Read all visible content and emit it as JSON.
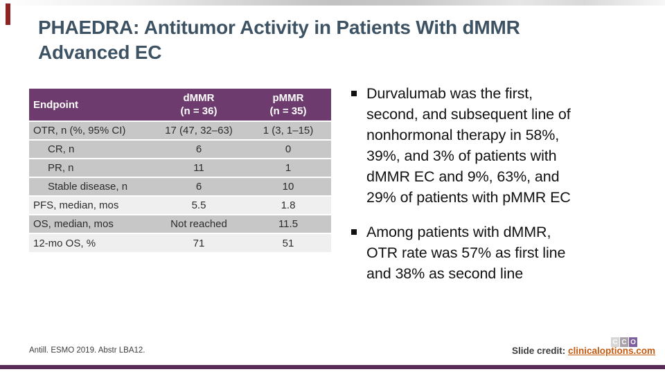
{
  "title": {
    "line1": "PHAEDRA: Antitumor Activity in Patients With dMMR",
    "line2": "Advanced EC"
  },
  "table": {
    "header": {
      "endpoint": "Endpoint",
      "dmmr_name": "dMMR",
      "dmmr_n": "(n = 36)",
      "pmmr_name": "pMMR",
      "pmmr_n": "(n = 35)"
    },
    "rows": [
      {
        "label": "OTR, n (%, 95% CI)",
        "dmmr": "17 (47, 32–63)",
        "pmmr": "1 (3, 1–15)"
      },
      {
        "label": "CR, n",
        "dmmr": "6",
        "pmmr": "0"
      },
      {
        "label": "PR, n",
        "dmmr": "11",
        "pmmr": "1"
      },
      {
        "label": "Stable disease, n",
        "dmmr": "6",
        "pmmr": "10"
      },
      {
        "label": "PFS, median, mos",
        "dmmr": "5.5",
        "pmmr": "1.8"
      },
      {
        "label": "OS, median, mos",
        "dmmr": "Not reached",
        "pmmr": "11.5"
      },
      {
        "label": "12-mo OS, %",
        "dmmr": "71",
        "pmmr": "51"
      }
    ]
  },
  "bullets": [
    "Durvalumab was the first,\nsecond, and subsequent line of\nnonhormonal therapy in 58%,\n39%, and 3% of patients with\ndMMR EC and 9%, 63%, and\n29% of patients with pMMR EC",
    "Among patients with dMMR,\nOTR rate was 57% as first line\nand 38% as second line"
  ],
  "footer": {
    "citation": "Antill. ESMO 2019. Abstr LBA12.",
    "credit_label": "Slide credit: ",
    "credit_link": "clinicaloptions.com"
  },
  "logo": {
    "letters": [
      "C",
      "C",
      "O"
    ]
  },
  "colors": {
    "title": "#3d5263",
    "table-header-bg": "#6e3b6f",
    "row-gray": "#c7c7c7",
    "row-light": "#efefef",
    "accent-bar": "#5b2b58",
    "link": "#c55a11",
    "red-mark": "#8e2323",
    "logo-purple": "#7d5f9d"
  }
}
